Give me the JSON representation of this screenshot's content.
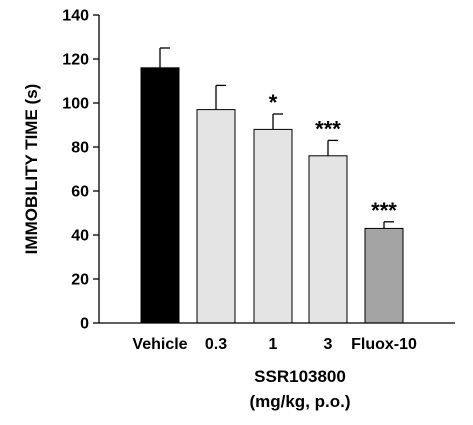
{
  "chart_data": {
    "type": "bar",
    "ylabel": "IMMOBILITY TIME (s)",
    "xlabel_line1": "SSR103800",
    "xlabel_line2": "(mg/kg, p.o.)",
    "ylim": [
      0,
      140
    ],
    "yticks": [
      0,
      20,
      40,
      60,
      80,
      100,
      120,
      140
    ],
    "grid": false,
    "categories": [
      "Vehicle",
      "0.3",
      "1",
      "3",
      "Fluox-10"
    ],
    "values": [
      116,
      97,
      88,
      76,
      43
    ],
    "errors": [
      9,
      11,
      7,
      7,
      3
    ],
    "significance": [
      "",
      "",
      "*",
      "***",
      "***"
    ],
    "bar_colors": [
      "#000000",
      "#e4e4e4",
      "#e4e4e4",
      "#e4e4e4",
      "#a4a4a4"
    ]
  }
}
